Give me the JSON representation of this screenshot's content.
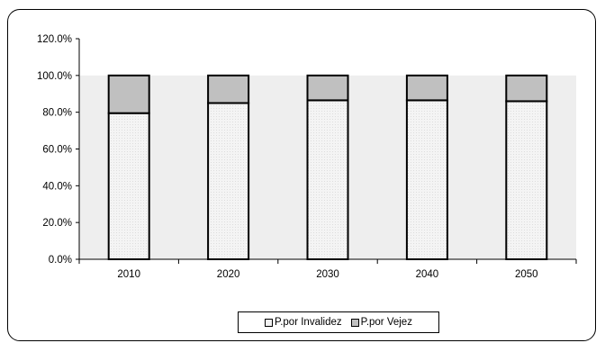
{
  "chart_data": {
    "type": "bar",
    "stacked": true,
    "categories": [
      "2010",
      "2020",
      "2030",
      "2040",
      "2050"
    ],
    "series": [
      {
        "name": "P.por Invalidez",
        "color": "#f2f2f2",
        "values": [
          79.5,
          85.0,
          86.5,
          86.5,
          86.0
        ]
      },
      {
        "name": "P.por Vejez",
        "color": "#c0c0c0",
        "values": [
          20.5,
          15.0,
          13.5,
          13.5,
          14.0
        ]
      }
    ],
    "ylim": [
      0,
      120
    ],
    "yticks": [
      "0.0%",
      "20.0%",
      "40.0%",
      "60.0%",
      "80.0%",
      "100.0%",
      "120.0%"
    ],
    "grid": false,
    "legend_position": "bottom",
    "plot_background": "#eeeeee",
    "title": "",
    "xlabel": "",
    "ylabel": ""
  }
}
